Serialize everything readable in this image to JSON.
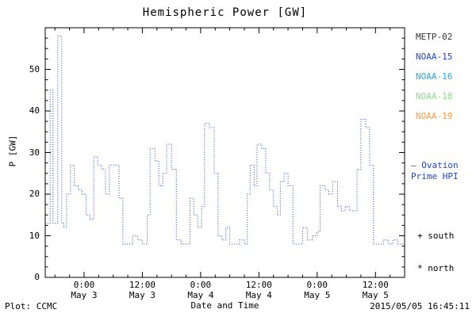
{
  "title": "Hemispheric Power [GW]",
  "footer": {
    "plot_credit": "Plot: CCMC",
    "timestamp": "2015/05/05 16:45:11"
  },
  "legend": {
    "satellites": [
      {
        "label": "METP-02",
        "color": "#333333"
      },
      {
        "label": "NOAA-15",
        "color": "#2244cc"
      },
      {
        "label": "NOAA-16",
        "color": "#22aadd"
      },
      {
        "label": "NOAA-18",
        "color": "#8fd98f"
      },
      {
        "label": "NOAA-19",
        "color": "#ff9933"
      }
    ],
    "ovation_label": "– Ovation\nPrime HPI",
    "ovation_color": "#2244cc",
    "south_marker": "+ south",
    "north_marker": "* north"
  },
  "chart_data": {
    "type": "line",
    "style": "stepped-dotted",
    "title": "Hemispheric Power [GW]",
    "xlabel": "Date and Time",
    "ylabel": "P [GW]",
    "ylim": [
      0,
      60
    ],
    "yticks": [
      0,
      10,
      20,
      30,
      40,
      50
    ],
    "x_hours_range": [
      0,
      74
    ],
    "grid": false,
    "legend_position": "right-outside",
    "line_color": "#2244cc",
    "xticks": [
      {
        "hour": 8,
        "time": "0:00",
        "date": "May 3"
      },
      {
        "hour": 20,
        "time": "12:00",
        "date": "May 3"
      },
      {
        "hour": 32,
        "time": "0:00",
        "date": "May 4"
      },
      {
        "hour": 44,
        "time": "12:00",
        "date": "May 4"
      },
      {
        "hour": 56,
        "time": "0:00",
        "date": "May 5"
      },
      {
        "hour": 68,
        "time": "12:00",
        "date": "May 5"
      }
    ],
    "series": [
      {
        "name": "Ovation Prime HPI",
        "units": "GW",
        "points": [
          [
            0,
            13
          ],
          [
            1.0,
            45
          ],
          [
            1.6,
            13
          ],
          [
            2.6,
            58
          ],
          [
            3.4,
            13
          ],
          [
            3.8,
            12
          ],
          [
            4.4,
            20
          ],
          [
            5.2,
            27
          ],
          [
            6.0,
            22
          ],
          [
            6.8,
            21
          ],
          [
            7.6,
            20
          ],
          [
            8.4,
            15
          ],
          [
            9.2,
            14
          ],
          [
            10.0,
            29
          ],
          [
            10.8,
            27
          ],
          [
            11.6,
            26
          ],
          [
            12.4,
            20
          ],
          [
            13.2,
            27
          ],
          [
            14.4,
            27
          ],
          [
            15.2,
            19
          ],
          [
            16.0,
            8
          ],
          [
            17.0,
            8
          ],
          [
            18.0,
            10
          ],
          [
            19.0,
            9
          ],
          [
            20.0,
            8
          ],
          [
            21.0,
            15
          ],
          [
            21.6,
            31
          ],
          [
            22.6,
            28
          ],
          [
            23.4,
            22
          ],
          [
            24.2,
            25
          ],
          [
            25.0,
            32
          ],
          [
            26.0,
            26
          ],
          [
            27.0,
            9
          ],
          [
            28.0,
            8
          ],
          [
            29.0,
            8
          ],
          [
            29.8,
            19
          ],
          [
            30.6,
            15
          ],
          [
            31.4,
            12
          ],
          [
            32.2,
            17
          ],
          [
            32.8,
            37
          ],
          [
            33.8,
            36
          ],
          [
            34.8,
            25
          ],
          [
            35.6,
            10
          ],
          [
            36.4,
            9
          ],
          [
            37.2,
            12
          ],
          [
            38.0,
            8
          ],
          [
            39.0,
            8
          ],
          [
            40.0,
            9
          ],
          [
            41.0,
            8
          ],
          [
            41.6,
            20
          ],
          [
            42.2,
            27
          ],
          [
            43.0,
            22
          ],
          [
            43.6,
            32
          ],
          [
            44.6,
            31
          ],
          [
            45.4,
            25
          ],
          [
            46.2,
            21
          ],
          [
            47.0,
            17
          ],
          [
            47.8,
            15
          ],
          [
            48.4,
            23
          ],
          [
            49.2,
            25
          ],
          [
            50.0,
            22
          ],
          [
            51.0,
            8
          ],
          [
            52.0,
            8
          ],
          [
            53.0,
            12
          ],
          [
            54.0,
            9
          ],
          [
            55.0,
            10
          ],
          [
            56.0,
            11
          ],
          [
            56.6,
            22
          ],
          [
            57.6,
            21
          ],
          [
            58.4,
            20
          ],
          [
            59.2,
            23
          ],
          [
            60.2,
            17
          ],
          [
            61.0,
            16
          ],
          [
            61.8,
            17
          ],
          [
            62.6,
            16
          ],
          [
            64.2,
            26
          ],
          [
            65.0,
            38
          ],
          [
            66.0,
            36
          ],
          [
            66.8,
            27
          ],
          [
            67.6,
            8
          ],
          [
            68.6,
            8
          ],
          [
            69.6,
            9
          ],
          [
            70.6,
            8
          ],
          [
            71.6,
            9
          ],
          [
            72.6,
            8
          ],
          [
            74,
            8
          ]
        ]
      }
    ]
  }
}
